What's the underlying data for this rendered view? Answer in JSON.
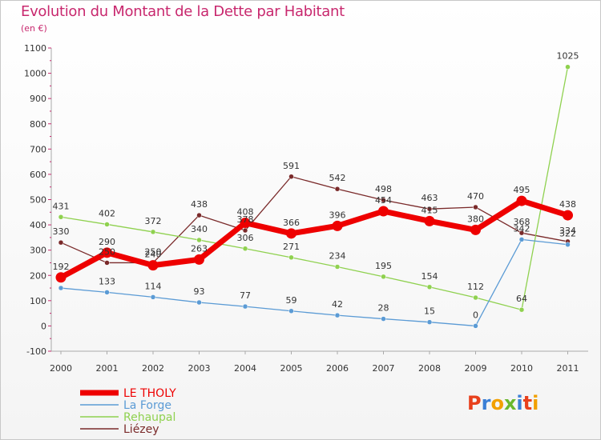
{
  "title": "Evolution du Montant de la Dette par Habitant",
  "subtitle": "(en €)",
  "logo": {
    "text": "Proxiti",
    "colors": [
      "#e8401c",
      "#3a7fd6",
      "#f2a000",
      "#6ab82e",
      "#3a7fd6",
      "#e8401c",
      "#f2a000"
    ]
  },
  "chart_data": {
    "type": "line",
    "x": [
      "2000",
      "2001",
      "2002",
      "2003",
      "2004",
      "2005",
      "2006",
      "2007",
      "2008",
      "2009",
      "2010",
      "2011"
    ],
    "ylim": [
      -100,
      1100
    ],
    "yticks": [
      "-100",
      "0",
      "100",
      "200",
      "300",
      "400",
      "500",
      "600",
      "700",
      "800",
      "900",
      "1000",
      "1100"
    ],
    "grid": false,
    "legend_position": "bottom-left",
    "series": [
      {
        "name": "Liézey",
        "color": "#7a2a2a",
        "width": 1.3,
        "values": [
          330,
          250,
          250,
          438,
          378,
          591,
          542,
          498,
          463,
          470,
          368,
          334
        ],
        "labels": [
          "330",
          "250",
          "250",
          "438",
          "378",
          "591",
          "542",
          "498",
          "463",
          "470",
          "368",
          "334"
        ]
      },
      {
        "name": "Rehaupal",
        "color": "#8fd14f",
        "width": 1.3,
        "values": [
          431,
          402,
          372,
          340,
          306,
          271,
          234,
          195,
          154,
          112,
          64,
          1025
        ],
        "labels": [
          "431",
          "402",
          "372",
          "340",
          "306",
          "271",
          "234",
          "195",
          "154",
          "112",
          "64",
          "1025"
        ]
      },
      {
        "name": "La Forge",
        "color": "#5b9bd5",
        "width": 1.3,
        "values": [
          150,
          133,
          114,
          93,
          77,
          59,
          42,
          28,
          15,
          0,
          342,
          322
        ],
        "labels": [
          "",
          "133",
          "114",
          "93",
          "77",
          "59",
          "42",
          "28",
          "15",
          "0",
          "342",
          "322"
        ]
      },
      {
        "name": "LE THOLY",
        "color": "#ee0000",
        "width": 7,
        "values": [
          192,
          290,
          240,
          263,
          408,
          366,
          396,
          454,
          415,
          380,
          495,
          438
        ],
        "labels": [
          "192",
          "290",
          "240",
          "263",
          "408",
          "366",
          "396",
          "454",
          "415",
          "380",
          "495",
          "438"
        ]
      }
    ],
    "legend": [
      {
        "name": "LE THOLY",
        "color": "#ee0000",
        "width": 7
      },
      {
        "name": "La Forge",
        "color": "#5b9bd5",
        "width": 1.5
      },
      {
        "name": "Rehaupal",
        "color": "#8fd14f",
        "width": 1.5
      },
      {
        "name": "Liézey",
        "color": "#7a2a2a",
        "width": 1.5
      }
    ]
  }
}
